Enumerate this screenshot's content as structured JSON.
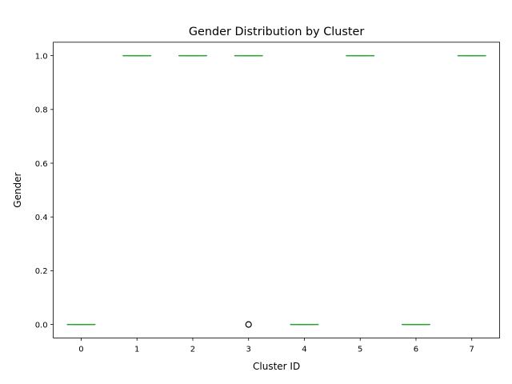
{
  "chart_data": {
    "type": "box",
    "title": "Gender Distribution by Cluster",
    "xlabel": "Cluster ID",
    "ylabel": "Gender",
    "categories": [
      "0",
      "1",
      "2",
      "3",
      "4",
      "5",
      "6",
      "7"
    ],
    "boxes": [
      {
        "cluster": "0",
        "q1": 0,
        "median": 0,
        "q3": 0,
        "whislo": 0,
        "whishi": 0,
        "fliers": []
      },
      {
        "cluster": "1",
        "q1": 1,
        "median": 1,
        "q3": 1,
        "whislo": 1,
        "whishi": 1,
        "fliers": []
      },
      {
        "cluster": "2",
        "q1": 1,
        "median": 1,
        "q3": 1,
        "whislo": 1,
        "whishi": 1,
        "fliers": []
      },
      {
        "cluster": "3",
        "q1": 1,
        "median": 1,
        "q3": 1,
        "whislo": 1,
        "whishi": 1,
        "fliers": [
          0
        ]
      },
      {
        "cluster": "4",
        "q1": 0,
        "median": 0,
        "q3": 0,
        "whislo": 0,
        "whishi": 0,
        "fliers": []
      },
      {
        "cluster": "5",
        "q1": 1,
        "median": 1,
        "q3": 1,
        "whislo": 1,
        "whishi": 1,
        "fliers": []
      },
      {
        "cluster": "6",
        "q1": 0,
        "median": 0,
        "q3": 0,
        "whislo": 0,
        "whishi": 0,
        "fliers": []
      },
      {
        "cluster": "7",
        "q1": 1,
        "median": 1,
        "q3": 1,
        "whislo": 1,
        "whishi": 1,
        "fliers": []
      }
    ],
    "yticks": [
      "0.0",
      "0.2",
      "0.4",
      "0.6",
      "0.8",
      "1.0"
    ],
    "ylim": [
      -0.05,
      1.05
    ],
    "grid": false,
    "colors": {
      "box": "#1f77b4",
      "median": "#2ca02c",
      "flier": "#000000",
      "axis": "#000000"
    }
  }
}
